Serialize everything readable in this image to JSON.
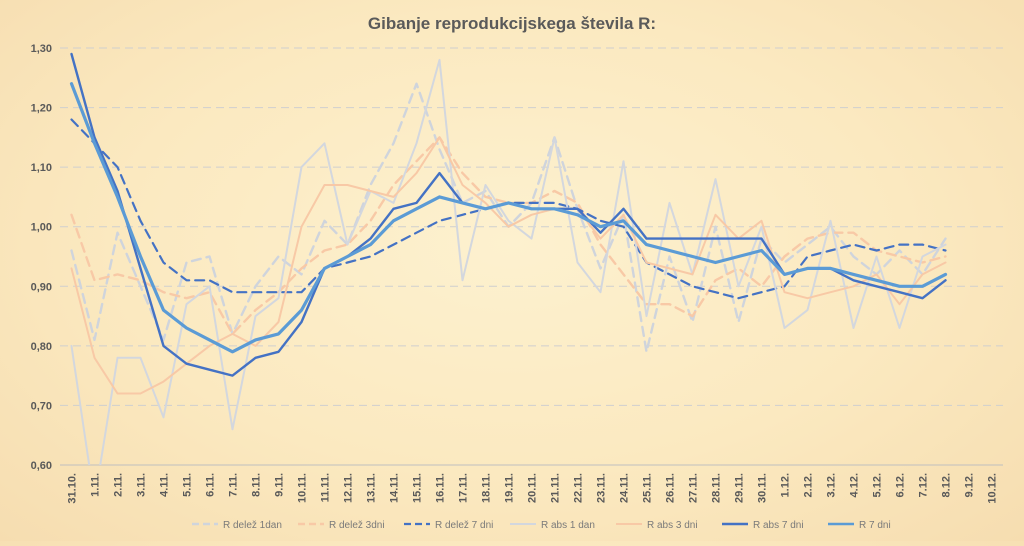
{
  "chart_data": {
    "type": "line",
    "title": "Gibanje reprodukcijskega števila R:",
    "xlabel": "",
    "ylabel": "",
    "ylim": [
      0.6,
      1.3
    ],
    "y_ticks": [
      "0,60",
      "0,70",
      "0,80",
      "0,90",
      "1,00",
      "1,10",
      "1,20",
      "1,30"
    ],
    "grid": true,
    "legend_position": "bottom",
    "categories": [
      "31.10.",
      "1.11.",
      "2.11.",
      "3.11.",
      "4.11.",
      "5.11.",
      "6.11.",
      "7.11.",
      "8.11.",
      "9.11.",
      "10.11.",
      "11.11.",
      "12.11.",
      "13.11.",
      "14.11.",
      "15.11.",
      "16.11.",
      "17.11.",
      "18.11.",
      "19.11.",
      "20.11.",
      "21.11.",
      "22.11.",
      "23.11.",
      "24.11.",
      "25.11.",
      "26.11.",
      "27.11.",
      "28.11.",
      "29.11.",
      "30.11.",
      "1.12.",
      "2.12.",
      "3.12.",
      "4.12.",
      "5.12.",
      "6.12.",
      "7.12.",
      "8.12.",
      "9.12.",
      "10.12."
    ],
    "series": [
      {
        "name": "R delež 1dan",
        "color": "#cfd4dc",
        "style": "dash",
        "width": 2.4,
        "values": [
          0.96,
          0.81,
          0.99,
          0.9,
          0.81,
          0.94,
          0.95,
          0.82,
          0.9,
          0.95,
          0.92,
          1.01,
          0.97,
          1.07,
          1.14,
          1.24,
          1.13,
          1.04,
          1.06,
          1.0,
          1.04,
          1.15,
          1.03,
          0.93,
          1.02,
          0.79,
          0.95,
          0.84,
          1.0,
          0.84,
          0.98,
          0.94,
          0.97,
          1.0,
          0.95,
          0.92,
          0.96,
          0.92,
          0.98,
          null,
          null
        ]
      },
      {
        "name": "R delež 3dni",
        "color": "#f8c9a6",
        "style": "dash",
        "width": 2.4,
        "values": [
          1.02,
          0.91,
          0.92,
          0.91,
          0.89,
          0.88,
          0.89,
          0.82,
          0.86,
          0.89,
          0.93,
          0.96,
          0.97,
          1.01,
          1.07,
          1.11,
          1.15,
          1.09,
          1.05,
          1.04,
          1.04,
          1.06,
          1.04,
          0.97,
          0.92,
          0.87,
          0.87,
          0.85,
          0.91,
          0.93,
          0.9,
          0.95,
          0.98,
          0.99,
          0.99,
          0.96,
          0.95,
          0.94,
          0.95,
          null,
          null
        ]
      },
      {
        "name": "R delež 7 dni",
        "color": "#4472c4",
        "style": "dash",
        "width": 2.2,
        "values": [
          1.18,
          1.14,
          1.1,
          1.01,
          0.94,
          0.91,
          0.91,
          0.89,
          0.89,
          0.89,
          0.89,
          0.93,
          0.94,
          0.95,
          0.97,
          0.99,
          1.01,
          1.02,
          1.03,
          1.04,
          1.04,
          1.04,
          1.03,
          1.01,
          1.0,
          0.94,
          0.92,
          0.9,
          0.89,
          0.88,
          0.89,
          0.9,
          0.95,
          0.96,
          0.97,
          0.96,
          0.97,
          0.97,
          0.96,
          null,
          null
        ]
      },
      {
        "name": "R abs 1 dan",
        "color": "#d3d7de",
        "style": "solid",
        "width": 2.0,
        "values": [
          0.8,
          0.54,
          0.78,
          0.78,
          0.68,
          0.87,
          0.9,
          0.66,
          0.85,
          0.88,
          1.1,
          1.14,
          0.97,
          1.06,
          1.04,
          1.14,
          1.28,
          0.91,
          1.07,
          1.01,
          0.98,
          1.15,
          0.94,
          0.89,
          1.11,
          0.85,
          1.04,
          0.92,
          1.08,
          0.9,
          1.0,
          0.83,
          0.86,
          1.01,
          0.83,
          0.95,
          0.83,
          0.95,
          0.97,
          null,
          null
        ]
      },
      {
        "name": "R abs 3 dni",
        "color": "#f8c9a6",
        "style": "solid",
        "width": 2.0,
        "values": [
          0.93,
          0.78,
          0.72,
          0.72,
          0.74,
          0.77,
          0.8,
          0.82,
          0.8,
          0.84,
          1.0,
          1.07,
          1.07,
          1.06,
          1.05,
          1.09,
          1.15,
          1.07,
          1.04,
          1.0,
          1.02,
          1.03,
          1.03,
          0.98,
          1.02,
          0.94,
          0.93,
          0.92,
          1.02,
          0.98,
          1.01,
          0.89,
          0.88,
          0.89,
          0.9,
          0.92,
          0.87,
          0.92,
          0.94,
          null,
          null
        ]
      },
      {
        "name": "R abs 7 dni",
        "color": "#4472c4",
        "style": "solid",
        "width": 2.4,
        "values": [
          1.29,
          1.15,
          1.06,
          0.93,
          0.8,
          0.77,
          0.76,
          0.75,
          0.78,
          0.79,
          0.84,
          0.93,
          0.95,
          0.98,
          1.03,
          1.04,
          1.09,
          1.04,
          1.03,
          1.04,
          1.03,
          1.03,
          1.03,
          0.99,
          1.03,
          0.98,
          0.98,
          0.98,
          0.98,
          0.98,
          0.98,
          0.92,
          0.93,
          0.93,
          0.91,
          0.9,
          0.89,
          0.88,
          0.91,
          null,
          null
        ]
      },
      {
        "name": "R 7 dni",
        "color": "#5b9bd5",
        "style": "solid",
        "width": 3.2,
        "values": [
          1.24,
          1.14,
          1.05,
          0.95,
          0.86,
          0.83,
          0.81,
          0.79,
          0.81,
          0.82,
          0.86,
          0.93,
          0.95,
          0.97,
          1.01,
          1.03,
          1.05,
          1.04,
          1.03,
          1.04,
          1.03,
          1.03,
          1.02,
          1.0,
          1.01,
          0.97,
          0.96,
          0.95,
          0.94,
          0.95,
          0.96,
          0.92,
          0.93,
          0.93,
          0.92,
          0.91,
          0.9,
          0.9,
          0.92,
          null,
          null
        ]
      }
    ]
  }
}
